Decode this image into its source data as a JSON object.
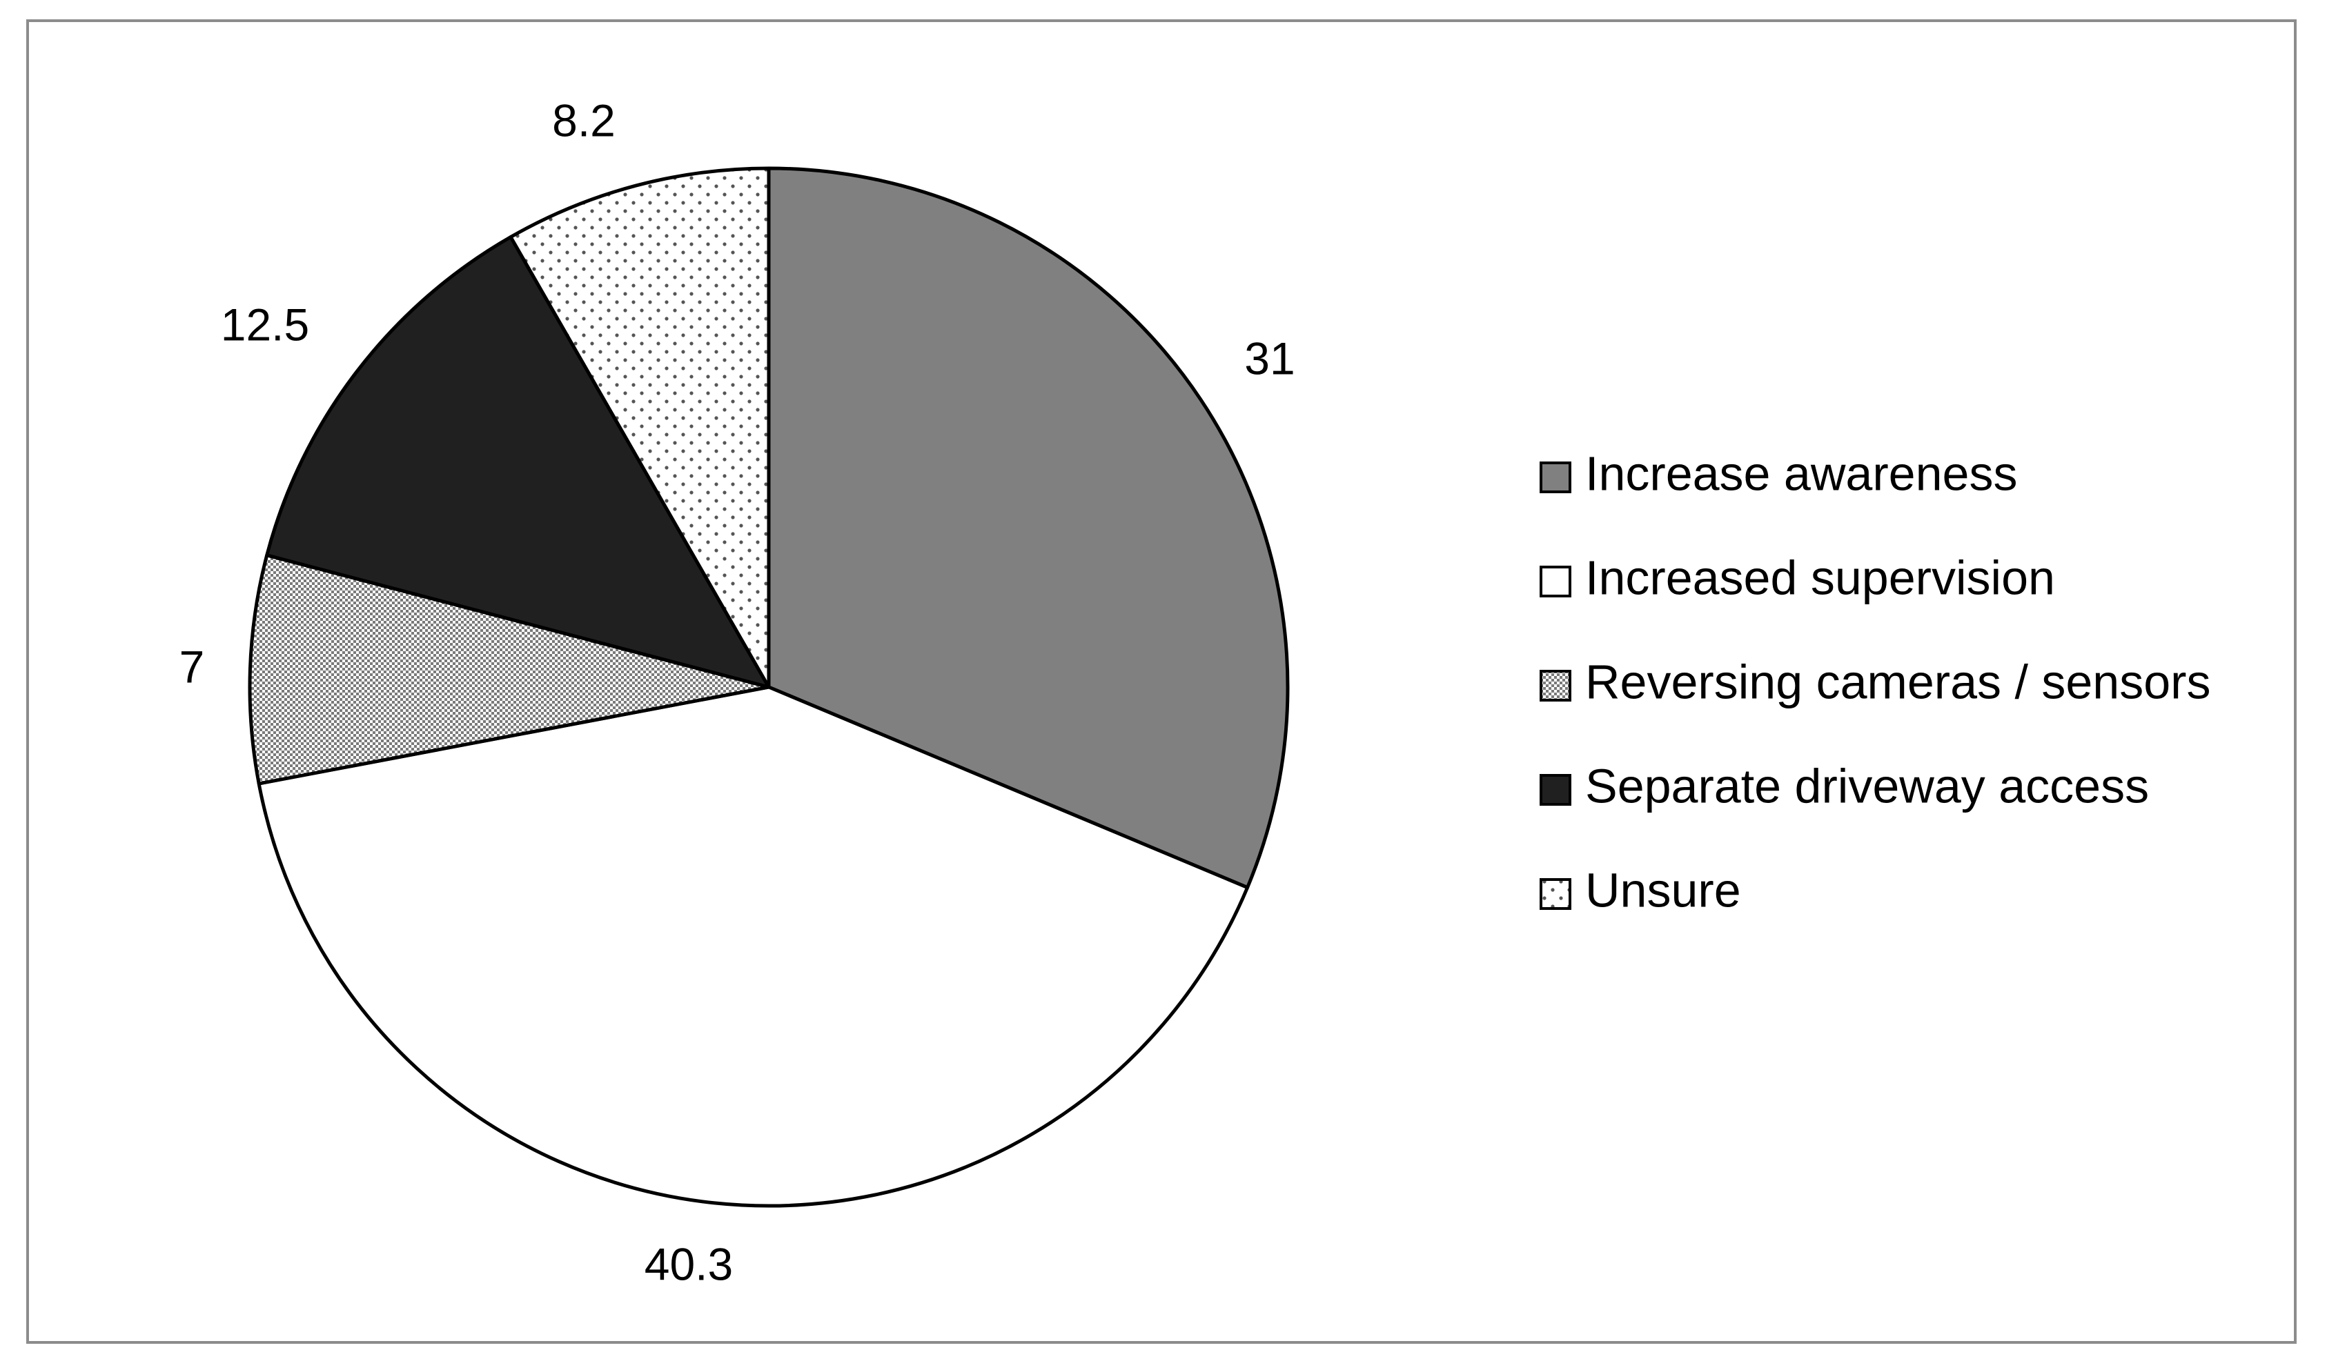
{
  "chart_data": {
    "type": "pie",
    "title": "",
    "start_angle_deg": 0,
    "direction": "clockwise",
    "legend_position": "right",
    "slices": [
      {
        "label": "Increase awareness",
        "value": 31,
        "value_label": "31",
        "fill": "#808080",
        "pattern": "solid"
      },
      {
        "label": "Increased supervision",
        "value": 40.3,
        "value_label": "40.3",
        "fill": "#ffffff",
        "pattern": "solid"
      },
      {
        "label": "Reversing cameras / sensors",
        "value": 7,
        "value_label": "7",
        "fill": "#ffffff",
        "pattern": "checker"
      },
      {
        "label": "Separate driveway access",
        "value": 12.5,
        "value_label": "12.5",
        "fill": "#202020",
        "pattern": "solid"
      },
      {
        "label": "Unsure",
        "value": 8.2,
        "value_label": "8.2",
        "fill": "#ffffff",
        "pattern": "dots"
      }
    ]
  }
}
